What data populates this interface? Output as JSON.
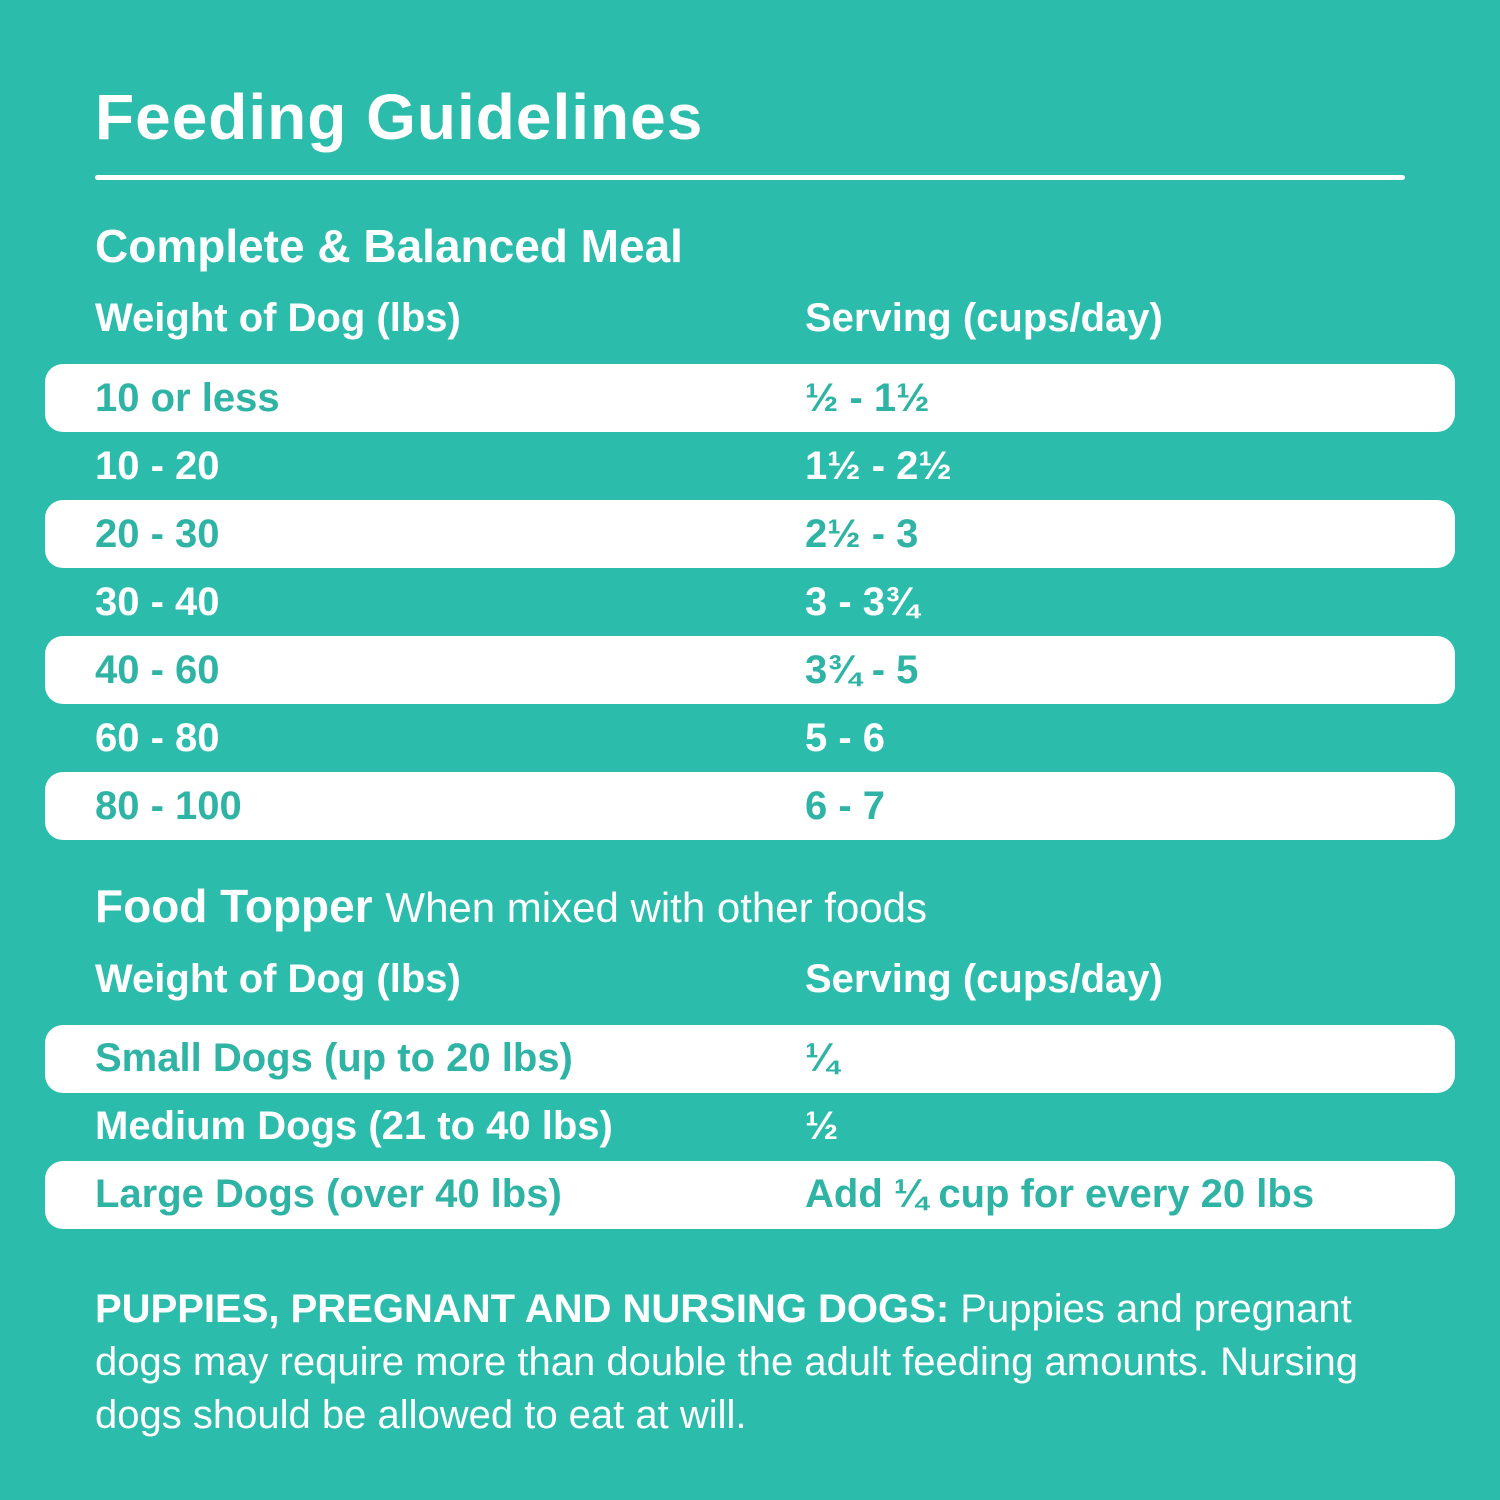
{
  "page": {
    "title": "Feeding Guidelines",
    "accent_color": "#2bbcac"
  },
  "meal": {
    "heading": "Complete & Balanced Meal",
    "col_weight": "Weight of Dog (lbs)",
    "col_serving": "Serving (cups/day)",
    "rows": [
      {
        "weight": "10 or less",
        "serving": "½ - 1½"
      },
      {
        "weight": "10 - 20",
        "serving": "1½ - 2½"
      },
      {
        "weight": "20 - 30",
        "serving": "2½ - 3"
      },
      {
        "weight": "30 - 40",
        "serving": "3 - 3¾"
      },
      {
        "weight": "40 - 60",
        "serving": "3¾ - 5"
      },
      {
        "weight": "60 - 80",
        "serving": "5 - 6"
      },
      {
        "weight": "80 - 100",
        "serving": "6 - 7"
      }
    ]
  },
  "topper": {
    "heading": "Food Topper",
    "subheading": "When mixed with other foods",
    "col_weight": "Weight of Dog (lbs)",
    "col_serving": "Serving (cups/day)",
    "rows": [
      {
        "weight": "Small Dogs (up to 20 lbs)",
        "serving": "¼"
      },
      {
        "weight": "Medium Dogs (21 to 40 lbs)",
        "serving": "½"
      },
      {
        "weight": "Large Dogs (over 40 lbs)",
        "serving": "Add ¼ cup for every 20 lbs"
      }
    ]
  },
  "footer": {
    "lead": "PUPPIES, PREGNANT AND NURSING DOGS:",
    "text": " Puppies and pregnant dogs may require more than double the adult feeding amounts. Nursing dogs should be allowed to eat at will."
  }
}
